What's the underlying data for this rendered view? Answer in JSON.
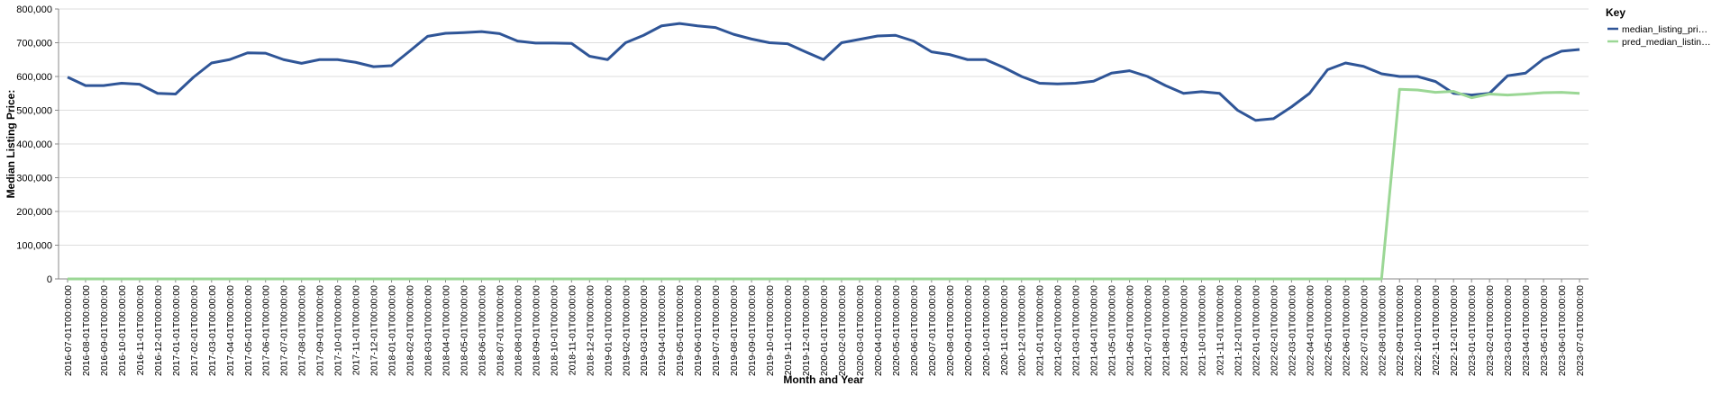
{
  "chart_data": {
    "type": "line",
    "x_label": "Month and Year",
    "y_label": "Median Listing Price:",
    "legend_title": "Key",
    "legend": "right",
    "grid": true,
    "categories": [
      "2016-07-01T00:00:00",
      "2016-08-01T00:00:00",
      "2016-09-01T00:00:00",
      "2016-10-01T00:00:00",
      "2016-11-01T00:00:00",
      "2016-12-01T00:00:00",
      "2017-01-01T00:00:00",
      "2017-02-01T00:00:00",
      "2017-03-01T00:00:00",
      "2017-04-01T00:00:00",
      "2017-05-01T00:00:00",
      "2017-06-01T00:00:00",
      "2017-07-01T00:00:00",
      "2017-08-01T00:00:00",
      "2017-09-01T00:00:00",
      "2017-10-01T00:00:00",
      "2017-11-01T00:00:00",
      "2017-12-01T00:00:00",
      "2018-01-01T00:00:00",
      "2018-02-01T00:00:00",
      "2018-03-01T00:00:00",
      "2018-04-01T00:00:00",
      "2018-05-01T00:00:00",
      "2018-06-01T00:00:00",
      "2018-07-01T00:00:00",
      "2018-08-01T00:00:00",
      "2018-09-01T00:00:00",
      "2018-10-01T00:00:00",
      "2018-11-01T00:00:00",
      "2018-12-01T00:00:00",
      "2019-01-01T00:00:00",
      "2019-02-01T00:00:00",
      "2019-03-01T00:00:00",
      "2019-04-01T00:00:00",
      "2019-05-01T00:00:00",
      "2019-06-01T00:00:00",
      "2019-07-01T00:00:00",
      "2019-08-01T00:00:00",
      "2019-09-01T00:00:00",
      "2019-10-01T00:00:00",
      "2019-11-01T00:00:00",
      "2019-12-01T00:00:00",
      "2020-01-01T00:00:00",
      "2020-02-01T00:00:00",
      "2020-03-01T00:00:00",
      "2020-04-01T00:00:00",
      "2020-05-01T00:00:00",
      "2020-06-01T00:00:00",
      "2020-07-01T00:00:00",
      "2020-08-01T00:00:00",
      "2020-09-01T00:00:00",
      "2020-10-01T00:00:00",
      "2020-11-01T00:00:00",
      "2020-12-01T00:00:00",
      "2021-01-01T00:00:00",
      "2021-02-01T00:00:00",
      "2021-03-01T00:00:00",
      "2021-04-01T00:00:00",
      "2021-05-01T00:00:00",
      "2021-06-01T00:00:00",
      "2021-07-01T00:00:00",
      "2021-08-01T00:00:00",
      "2021-09-01T00:00:00",
      "2021-10-01T00:00:00",
      "2021-11-01T00:00:00",
      "2021-12-01T00:00:00",
      "2022-01-01T00:00:00",
      "2022-02-01T00:00:00",
      "2022-03-01T00:00:00",
      "2022-04-01T00:00:00",
      "2022-05-01T00:00:00",
      "2022-06-01T00:00:00",
      "2022-07-01T00:00:00",
      "2022-08-01T00:00:00",
      "2022-09-01T00:00:00",
      "2022-10-01T00:00:00",
      "2022-11-01T00:00:00",
      "2022-12-01T00:00:00",
      "2023-01-01T00:00:00",
      "2023-02-01T00:00:00",
      "2023-03-01T00:00:00",
      "2023-04-01T00:00:00",
      "2023-05-01T00:00:00",
      "2023-06-01T00:00:00",
      "2023-07-01T00:00:00"
    ],
    "series": [
      {
        "name": "median_listing_pri…",
        "color": "#2f5597",
        "values": [
          598000,
          573000,
          573000,
          580000,
          577000,
          550000,
          548000,
          598000,
          640000,
          650000,
          670000,
          669000,
          650000,
          639000,
          650000,
          650000,
          642000,
          629000,
          632000,
          675000,
          719000,
          728000,
          730000,
          733000,
          727000,
          705000,
          699000,
          699000,
          698000,
          660000,
          650000,
          700000,
          722000,
          750000,
          757000,
          750000,
          745000,
          725000,
          711000,
          700000,
          697000,
          673000,
          650000,
          700000,
          710000,
          720000,
          722000,
          705000,
          673000,
          665000,
          650000,
          650000,
          627000,
          600000,
          580000,
          578000,
          580000,
          586000,
          610000,
          617000,
          600000,
          573000,
          550000,
          555000,
          550000,
          500000,
          470000,
          475000,
          510000,
          550000,
          620000,
          640000,
          630000,
          608000,
          600000,
          600000,
          585000,
          550000,
          545000,
          550000,
          602000,
          610000,
          652000,
          675000,
          680000
        ]
      },
      {
        "name": "pred_median_listin…",
        "color": "#9bd795",
        "values": [
          0,
          0,
          0,
          0,
          0,
          0,
          0,
          0,
          0,
          0,
          0,
          0,
          0,
          0,
          0,
          0,
          0,
          0,
          0,
          0,
          0,
          0,
          0,
          0,
          0,
          0,
          0,
          0,
          0,
          0,
          0,
          0,
          0,
          0,
          0,
          0,
          0,
          0,
          0,
          0,
          0,
          0,
          0,
          0,
          0,
          0,
          0,
          0,
          0,
          0,
          0,
          0,
          0,
          0,
          0,
          0,
          0,
          0,
          0,
          0,
          0,
          0,
          0,
          0,
          0,
          0,
          0,
          0,
          0,
          0,
          0,
          0,
          0,
          0,
          562000,
          560000,
          553000,
          556000,
          537000,
          548000,
          545000,
          548000,
          552000,
          553000,
          550000
        ]
      }
    ],
    "ylim": [
      0,
      800000
    ],
    "yticks": [
      0,
      {
        "value": 100000,
        "label": "100,000"
      },
      {
        "value": 200000,
        "label": "200,000"
      },
      {
        "value": 300000,
        "label": "300,000"
      },
      {
        "value": 400000,
        "label": "400,000"
      },
      {
        "value": 500000,
        "label": "500,000"
      },
      {
        "value": 600000,
        "label": "600,000"
      },
      {
        "value": 700000,
        "label": "700,000"
      },
      {
        "value": 800000,
        "label": "800,000"
      }
    ]
  }
}
